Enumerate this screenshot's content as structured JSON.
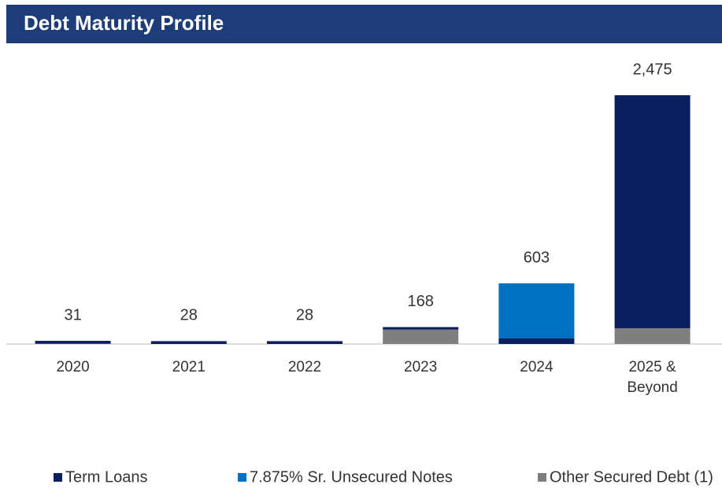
{
  "chart_data": {
    "type": "stacked_bar",
    "title": "Debt Maturity Profile",
    "categories": [
      "2020",
      "2021",
      "2022",
      "2023",
      "2024",
      "2025 & Beyond"
    ],
    "series": [
      {
        "name": "Term Loans",
        "color": "#0b1f5e",
        "values": [
          29,
          28,
          28,
          25,
          55,
          2318
        ]
      },
      {
        "name": "7.875% Sr. Unsecured Notes",
        "color": "#0070c0",
        "values": [
          0,
          0,
          0,
          0,
          548,
          0
        ]
      },
      {
        "name": "Other Secured Debt (1)",
        "color": "#7f7f7f",
        "values": [
          2,
          0,
          0,
          143,
          0,
          157
        ]
      }
    ],
    "totals": [
      31,
      28,
      28,
      168,
      603,
      2475
    ],
    "total_labels": [
      "31",
      "28",
      "28",
      "168",
      "603",
      "2,475"
    ],
    "stack_order": [
      2,
      0,
      1
    ]
  }
}
